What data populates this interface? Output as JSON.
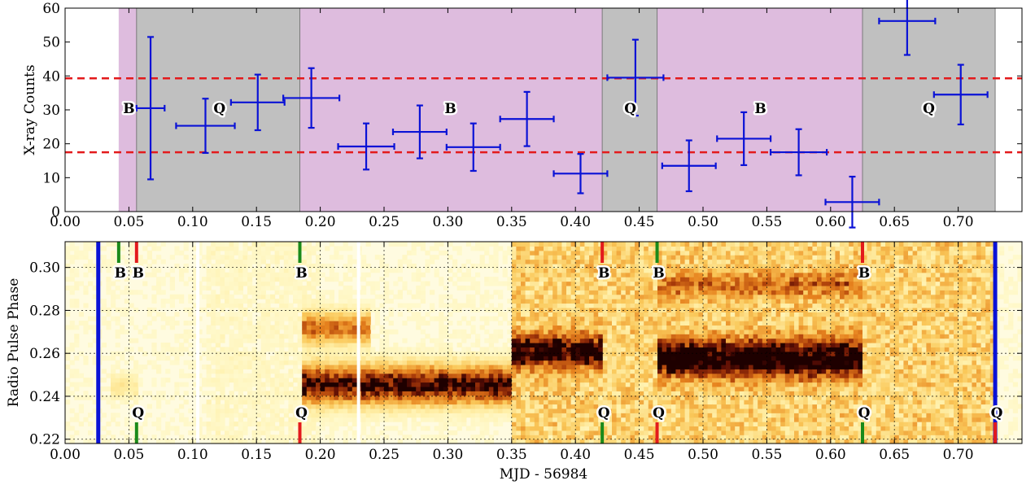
{
  "chart_data": [
    {
      "type": "scatter",
      "panel": "top",
      "ylabel": "X-ray Counts",
      "xlim": [
        0.0,
        0.75
      ],
      "ylim": [
        0,
        60
      ],
      "xticks": [
        "0.00",
        "0.05",
        "0.10",
        "0.15",
        "0.20",
        "0.25",
        "0.30",
        "0.35",
        "0.40",
        "0.45",
        "0.50",
        "0.55",
        "0.60",
        "0.65",
        "0.70"
      ],
      "yticks": [
        "0",
        "10",
        "20",
        "30",
        "40",
        "50",
        "60"
      ],
      "hlines": [
        17.5,
        39.3
      ],
      "hline_color": "#e31a1c",
      "point_color": "#0a12d6",
      "spans": [
        {
          "mode": "B",
          "x0": 0.042,
          "x1": 0.056,
          "color": "#debcde"
        },
        {
          "mode": "Q",
          "x0": 0.056,
          "x1": 0.184,
          "color": "#c0c0c0"
        },
        {
          "mode": "B",
          "x0": 0.184,
          "x1": 0.421,
          "color": "#debcde"
        },
        {
          "mode": "Q",
          "x0": 0.421,
          "x1": 0.464,
          "color": "#c0c0c0"
        },
        {
          "mode": "B",
          "x0": 0.464,
          "x1": 0.625,
          "color": "#debcde"
        },
        {
          "mode": "Q",
          "x0": 0.625,
          "x1": 0.729,
          "color": "#c0c0c0"
        }
      ],
      "mode_labels": [
        {
          "text": "B",
          "x": 0.05,
          "y": 30.5
        },
        {
          "text": "Q",
          "x": 0.121,
          "y": 30.5
        },
        {
          "text": "B",
          "x": 0.302,
          "y": 30.5
        },
        {
          "text": "Q",
          "x": 0.443,
          "y": 30.5
        },
        {
          "text": "B",
          "x": 0.545,
          "y": 30.5
        },
        {
          "text": "Q",
          "x": 0.677,
          "y": 30.5
        }
      ],
      "points": [
        {
          "x": 0.067,
          "xerr": 0.011,
          "y": 30.5,
          "yerr": 21.0
        },
        {
          "x": 0.11,
          "xerr": 0.023,
          "y": 25.3,
          "yerr": 8.0
        },
        {
          "x": 0.151,
          "xerr": 0.021,
          "y": 32.2,
          "yerr": 8.2
        },
        {
          "x": 0.193,
          "xerr": 0.022,
          "y": 33.5,
          "yerr": 8.8
        },
        {
          "x": 0.236,
          "xerr": 0.022,
          "y": 19.2,
          "yerr": 6.8
        },
        {
          "x": 0.278,
          "xerr": 0.021,
          "y": 23.5,
          "yerr": 7.8
        },
        {
          "x": 0.32,
          "xerr": 0.021,
          "y": 19.0,
          "yerr": 7.0
        },
        {
          "x": 0.362,
          "xerr": 0.021,
          "y": 27.3,
          "yerr": 8.0
        },
        {
          "x": 0.404,
          "xerr": 0.021,
          "y": 11.2,
          "yerr": 5.8
        },
        {
          "x": 0.447,
          "xerr": 0.022,
          "y": 39.5,
          "yerr": 11.2
        },
        {
          "x": 0.489,
          "xerr": 0.021,
          "y": 13.5,
          "yerr": 7.5
        },
        {
          "x": 0.532,
          "xerr": 0.021,
          "y": 21.5,
          "yerr": 7.8
        },
        {
          "x": 0.575,
          "xerr": 0.022,
          "y": 17.5,
          "yerr": 6.8
        },
        {
          "x": 0.617,
          "xerr": 0.021,
          "y": 2.8,
          "yerr": 7.5
        },
        {
          "x": 0.66,
          "xerr": 0.022,
          "y": 56.2,
          "yerr": 10.0
        },
        {
          "x": 0.702,
          "xerr": 0.021,
          "y": 34.5,
          "yerr": 8.8
        }
      ]
    },
    {
      "type": "heatmap",
      "panel": "bottom",
      "xlabel": "MJD - 56984",
      "ylabel": "Radio Pulse Phase",
      "xlim": [
        0.0,
        0.75
      ],
      "ylim": [
        0.218,
        0.312
      ],
      "xticks": [
        "0.00",
        "0.05",
        "0.10",
        "0.15",
        "0.20",
        "0.25",
        "0.30",
        "0.35",
        "0.40",
        "0.45",
        "0.50",
        "0.55",
        "0.60",
        "0.65",
        "0.70"
      ],
      "yticks": [
        "0.22",
        "0.24",
        "0.26",
        "0.28",
        "0.30"
      ],
      "colormap": "afmhot_r",
      "data_gaps": [
        0.104,
        0.23
      ],
      "observation_bounds": [
        0.026,
        0.729
      ],
      "bound_color": "#0a12d6",
      "bursts": [
        {
          "x0": 0.184,
          "x1": 0.351,
          "phase_center": 0.2455,
          "phase_width": 0.0085,
          "intensity": 0.95
        },
        {
          "x0": 0.184,
          "x1": 0.24,
          "phase_center": 0.272,
          "phase_width": 0.007,
          "intensity": 0.55
        },
        {
          "x0": 0.351,
          "x1": 0.421,
          "phase_center": 0.261,
          "phase_width": 0.0075,
          "intensity": 0.85
        },
        {
          "x0": 0.464,
          "x1": 0.625,
          "phase_center": 0.258,
          "phase_width": 0.0085,
          "intensity": 0.95
        },
        {
          "x0": 0.464,
          "x1": 0.625,
          "phase_center": 0.292,
          "phase_width": 0.006,
          "intensity": 0.35
        },
        {
          "x0": 0.035,
          "x1": 0.056,
          "phase_center": 0.245,
          "phase_width": 0.005,
          "intensity": 0.15
        }
      ],
      "noise_region": {
        "x0": 0.351,
        "x1": 0.729
      },
      "top_markers": [
        {
          "x": 0.042,
          "label": "B",
          "color": "#1a8a1a"
        },
        {
          "x": 0.056,
          "label": "B",
          "color": "#e31a1c"
        },
        {
          "x": 0.184,
          "label": "B",
          "color": "#1a8a1a"
        },
        {
          "x": 0.421,
          "label": "B",
          "color": "#e31a1c"
        },
        {
          "x": 0.464,
          "label": "B",
          "color": "#1a8a1a"
        },
        {
          "x": 0.625,
          "label": "B",
          "color": "#e31a1c"
        }
      ],
      "bottom_markers": [
        {
          "x": 0.056,
          "label": "Q",
          "color": "#1a8a1a"
        },
        {
          "x": 0.184,
          "label": "Q",
          "color": "#e31a1c"
        },
        {
          "x": 0.421,
          "label": "Q",
          "color": "#1a8a1a"
        },
        {
          "x": 0.464,
          "label": "Q",
          "color": "#e31a1c"
        },
        {
          "x": 0.625,
          "label": "Q",
          "color": "#1a8a1a"
        },
        {
          "x": 0.729,
          "label": "Q",
          "color": "#e31a1c"
        }
      ]
    }
  ]
}
